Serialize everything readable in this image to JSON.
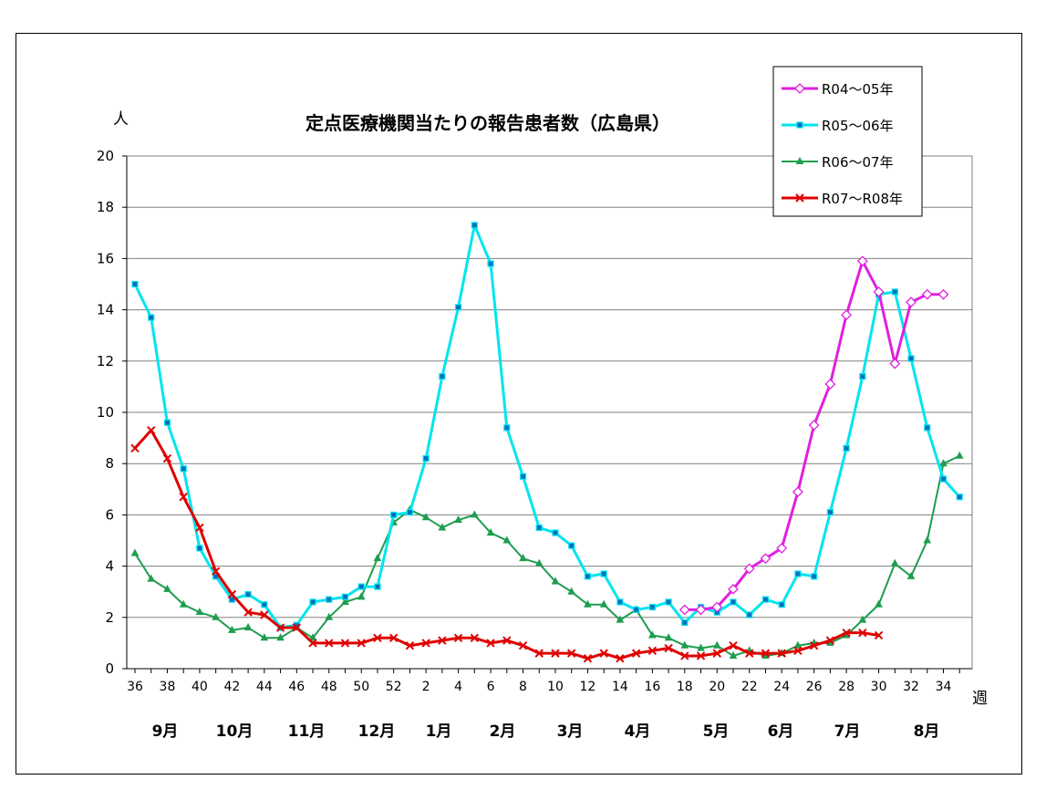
{
  "chart_data": {
    "type": "line",
    "title": "定点医療機関当たりの報告患者数（広島県）",
    "ylabel": "人",
    "xlabel": "週",
    "ylim": [
      0,
      20
    ],
    "yticks": [
      0,
      2,
      4,
      6,
      8,
      10,
      12,
      14,
      16,
      18,
      20
    ],
    "grid": true,
    "legend_position": "top-right",
    "x_tick_labels": [
      "36",
      "38",
      "40",
      "42",
      "44",
      "46",
      "48",
      "50",
      "52",
      "2",
      "4",
      "6",
      "8",
      "10",
      "12",
      "14",
      "16",
      "18",
      "20",
      "22",
      "24",
      "26",
      "28",
      "30",
      "32",
      "34"
    ],
    "months": [
      "9月",
      "10月",
      "11月",
      "12月",
      "1月",
      "2月",
      "3月",
      "4月",
      "5月",
      "6月",
      "7月",
      "8月"
    ],
    "series": [
      {
        "name": "R04～05年",
        "color": "#E020E0",
        "marker": "diamond",
        "start_index": 34,
        "values": [
          2.3,
          2.3,
          2.4,
          3.1,
          3.9,
          4.3,
          4.7,
          6.9,
          9.5,
          11.1,
          13.8,
          15.9,
          14.7,
          11.9,
          14.3,
          14.6,
          14.6
        ]
      },
      {
        "name": "R05～06年",
        "color": "#00E5EE",
        "marker": "square",
        "start_index": 0,
        "values": [
          15.0,
          13.7,
          9.6,
          7.8,
          4.7,
          3.6,
          2.7,
          2.9,
          2.5,
          1.6,
          1.7,
          2.6,
          2.7,
          2.8,
          3.2,
          3.2,
          6.0,
          6.1,
          8.2,
          11.4,
          14.1,
          17.3,
          15.8,
          9.4,
          7.5,
          5.5,
          5.3,
          4.8,
          3.6,
          3.7,
          2.6,
          2.3,
          2.4,
          2.6,
          1.8,
          2.4,
          2.2,
          2.6,
          2.1,
          2.7,
          2.5,
          3.7,
          3.6,
          6.1,
          8.6,
          11.4,
          14.6,
          14.7,
          12.1,
          9.4,
          7.4,
          6.7
        ]
      },
      {
        "name": "R06～07年",
        "color": "#1E9E4E",
        "marker": "triangle",
        "start_index": 0,
        "values": [
          4.5,
          3.5,
          3.1,
          2.5,
          2.2,
          2.0,
          1.5,
          1.6,
          1.2,
          1.2,
          1.6,
          1.2,
          2.0,
          2.6,
          2.8,
          4.3,
          5.7,
          6.2,
          5.9,
          5.5,
          5.8,
          6.0,
          5.3,
          5.0,
          4.3,
          4.1,
          3.4,
          3.0,
          2.5,
          2.5,
          1.9,
          2.3,
          1.3,
          1.2,
          0.9,
          0.8,
          0.9,
          0.5,
          0.7,
          0.5,
          0.6,
          0.9,
          1.0,
          1.0,
          1.3,
          1.9,
          2.5,
          4.1,
          3.6,
          5.0,
          8.0,
          8.3
        ]
      },
      {
        "name": "R07～R08年",
        "color": "#E00000",
        "marker": "x",
        "start_index": 0,
        "values": [
          8.6,
          9.3,
          8.2,
          6.7,
          5.5,
          3.8,
          2.9,
          2.2,
          2.1,
          1.6,
          1.6,
          1.0,
          1.0,
          1.0,
          1.0,
          1.2,
          1.2,
          0.9,
          1.0,
          1.1,
          1.2,
          1.2,
          1.0,
          1.1,
          0.9,
          0.6,
          0.6,
          0.6,
          0.4,
          0.6,
          0.4,
          0.6,
          0.7,
          0.8,
          0.5,
          0.5,
          0.6,
          0.9,
          0.6,
          0.6,
          0.6,
          0.7,
          0.9,
          1.1,
          1.4,
          1.4,
          1.3
        ]
      }
    ]
  }
}
